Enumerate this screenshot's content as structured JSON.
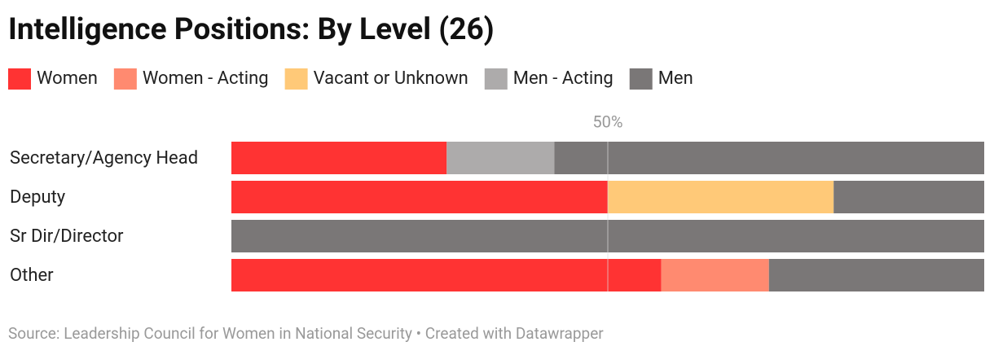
{
  "chart_data": {
    "type": "stacked-bar-horizontal",
    "title": "Intelligence Positions: By Level (26)",
    "source": "Source: Leadership Council for Women in National Security • Created with Datawrapper",
    "categories": [
      "Secretary/Agency Head",
      "Deputy",
      "Sr Dir/Director",
      "Other"
    ],
    "series": [
      {
        "name": "Women",
        "color": "#ff3333",
        "values": [
          28.6,
          50,
          0,
          57.1
        ]
      },
      {
        "name": "Women - Acting",
        "color": "#ff8a70",
        "values": [
          0,
          0,
          0,
          14.3
        ]
      },
      {
        "name": "Vacant or Unknown",
        "color": "#ffc978",
        "values": [
          0,
          30,
          0,
          0
        ]
      },
      {
        "name": "Men - Acting",
        "color": "#adabab",
        "values": [
          14.3,
          0,
          0,
          0
        ]
      },
      {
        "name": "Men",
        "color": "#7a7777",
        "values": [
          57.1,
          20,
          100,
          28.6
        ]
      }
    ],
    "xlim": [
      0,
      100
    ],
    "xticks": [
      {
        "value": 50,
        "label": "50%"
      }
    ],
    "grid": true
  }
}
